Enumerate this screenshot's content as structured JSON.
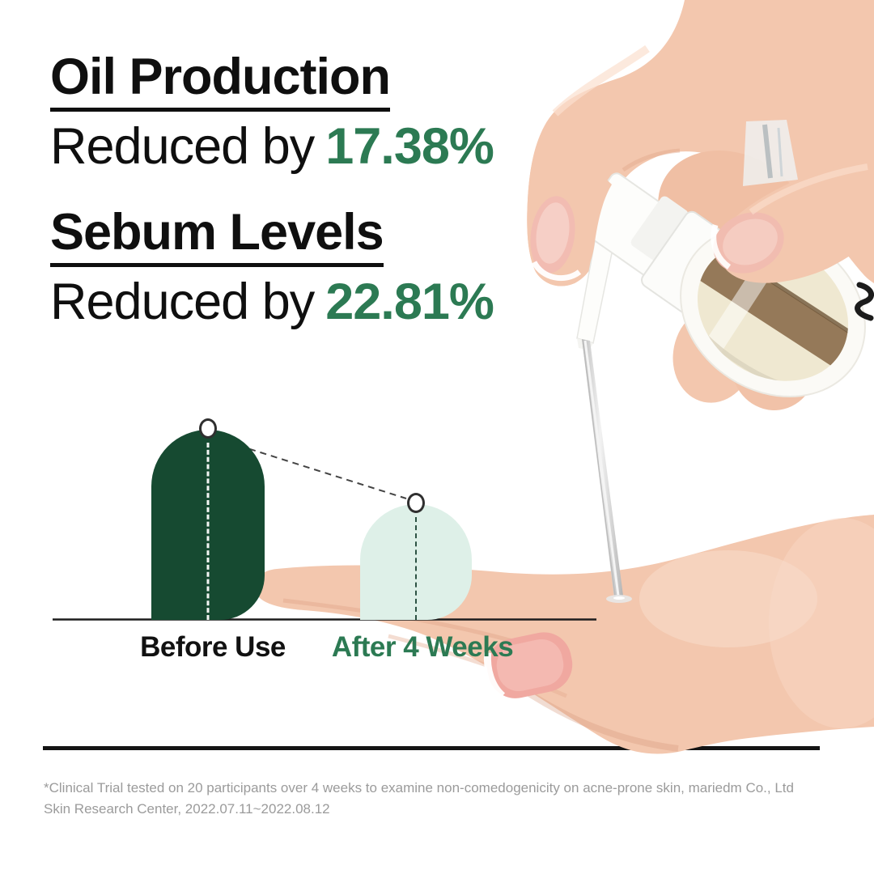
{
  "stats": [
    {
      "title": "Oil Production",
      "prefix": "Reduced by",
      "value": "17.38%"
    },
    {
      "title": "Sebum Levels",
      "prefix": "Reduced by",
      "value": "22.81%"
    }
  ],
  "chart_data": {
    "type": "bar",
    "categories": [
      "Before Use",
      "After 4 Weeks"
    ],
    "values": [
      100,
      61
    ],
    "value_note": "relative bar heights as depicted; no numeric axis shown",
    "bar_colors": [
      "#164a31",
      "#def0e8"
    ],
    "category_colors": [
      "#111111",
      "#2c7a53"
    ],
    "baseline": true,
    "markers": "white circle at each bar apex joined by dashed connector",
    "title": "",
    "xlabel": "",
    "ylabel": ""
  },
  "illustration": {
    "description": "hand pressing white pump bottle, oil stream falling into open palm",
    "skin_tone": "#f3c7ae",
    "bottle_liquid_color": "#efe8d1",
    "label_band_color": "#8d6f4e"
  },
  "footnote": {
    "line1": "*Clinical Trial tested on 20 participants over 4 weeks to examine non-comedogenicity on acne-prone skin, mariedm Co., Ltd",
    "line2": "Skin Research Center, 2022.07.11~2022.08.12"
  },
  "colors": {
    "accent_green": "#2c7a53",
    "text_black": "#0f0f0f",
    "footnote_gray": "#9b9b9b",
    "bar_dark": "#164a31",
    "bar_light": "#def0e8"
  }
}
